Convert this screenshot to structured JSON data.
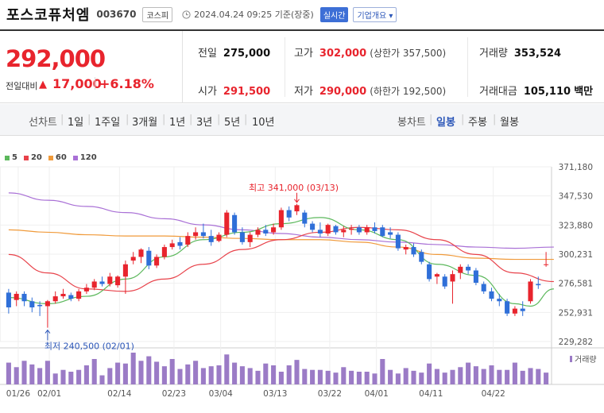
{
  "header": {
    "stock_name": "포스코퓨처엠",
    "stock_code": "003670",
    "market": "코스피",
    "timestamp": "2024.04.24 09:25 기준(장중)",
    "realtime": "실시간",
    "company_info": "기업개요 ▾",
    "clock_icon": "clock-icon"
  },
  "price": {
    "current": "292,000",
    "change_label": "전일대비",
    "change_arrow": "▲",
    "change_amount": "17,000",
    "change_pct": "+6.18%"
  },
  "stats": {
    "prev_label": "전일",
    "prev_value": "275,000",
    "open_label": "시가",
    "open_value": "291,500",
    "high_label": "고가",
    "high_value": "302,000",
    "upper_limit": "(상한가 357,500)",
    "low_label": "저가",
    "low_value": "290,000",
    "lower_limit": "(하한가 192,500)",
    "volume_label": "거래량",
    "volume_value": "353,524",
    "amount_label": "거래대금",
    "amount_value": "105,110",
    "amount_unit": "백만"
  },
  "periods": {
    "line_label": "선차트",
    "items": [
      "1일",
      "1주일",
      "3개월",
      "1년",
      "3년",
      "5년",
      "10년"
    ],
    "candle_label": "봉차트",
    "candle_items": [
      "일봉",
      "주봉",
      "월봉"
    ],
    "active_candle": "일봉"
  },
  "legend": [
    {
      "label": "5",
      "color": "#5cb85c"
    },
    {
      "label": "20",
      "color": "#e8424a"
    },
    {
      "label": "60",
      "color": "#f09a3a"
    },
    {
      "label": "120",
      "color": "#a970d6"
    }
  ],
  "volume_label": "거래량",
  "chart_data": {
    "type": "candlestick",
    "y_ticks": [
      "371,180",
      "347,530",
      "323,880",
      "300,231",
      "276,581",
      "252,931",
      "229,282"
    ],
    "ylim": [
      229282,
      371180
    ],
    "x_ticks": [
      "01/26",
      "02/01",
      "02/14",
      "02/23",
      "03/04",
      "03/13",
      "03/22",
      "04/01",
      "04/11",
      "04/22"
    ],
    "annotations": [
      {
        "text": "최고 341,000 (03/13)",
        "color": "#e8242d"
      },
      {
        "text": "최저 240,500 (02/01)",
        "color": "#2b56b8"
      }
    ],
    "ohlc": [
      [
        269000,
        272000,
        252000,
        257000
      ],
      [
        263000,
        270000,
        258000,
        268000
      ],
      [
        268000,
        270000,
        258000,
        262000
      ],
      [
        262000,
        265000,
        253000,
        257000
      ],
      [
        259000,
        262000,
        250000,
        258000
      ],
      [
        258000,
        263000,
        240500,
        262000
      ],
      [
        262000,
        270000,
        260000,
        266000
      ],
      [
        266000,
        272000,
        264000,
        268000
      ],
      [
        267000,
        269000,
        262000,
        264000
      ],
      [
        264000,
        272000,
        262000,
        270000
      ],
      [
        270000,
        276000,
        268000,
        273000
      ],
      [
        273000,
        280000,
        271000,
        278000
      ],
      [
        278000,
        282000,
        274000,
        276000
      ],
      [
        276000,
        285000,
        274000,
        282000
      ],
      [
        275000,
        283000,
        273000,
        282000
      ],
      [
        282000,
        295000,
        268000,
        292000
      ],
      [
        295000,
        302000,
        292000,
        298000
      ],
      [
        298000,
        305000,
        293000,
        304000
      ],
      [
        303000,
        306000,
        288000,
        291000
      ],
      [
        291000,
        300000,
        289000,
        298000
      ],
      [
        298000,
        308000,
        296000,
        306000
      ],
      [
        306000,
        312000,
        304000,
        309000
      ],
      [
        310000,
        314000,
        304000,
        307000
      ],
      [
        308000,
        318000,
        306000,
        315000
      ],
      [
        315000,
        322000,
        312000,
        318000
      ],
      [
        318000,
        325000,
        313000,
        315000
      ],
      [
        315000,
        320000,
        307000,
        310000
      ],
      [
        311000,
        318000,
        310000,
        316000
      ],
      [
        316000,
        336000,
        314000,
        334000
      ],
      [
        332000,
        334000,
        316000,
        318000
      ],
      [
        318000,
        322000,
        308000,
        310000
      ],
      [
        310000,
        318000,
        306000,
        316000
      ],
      [
        316000,
        322000,
        314000,
        320000
      ],
      [
        320000,
        324000,
        315000,
        317000
      ],
      [
        318000,
        325000,
        316000,
        322000
      ],
      [
        322000,
        338000,
        320000,
        336000
      ],
      [
        336000,
        339000,
        327000,
        330000
      ],
      [
        335000,
        341000,
        332000,
        340000
      ],
      [
        334000,
        336000,
        322000,
        325000
      ],
      [
        325000,
        327000,
        318000,
        320000
      ],
      [
        320000,
        326000,
        314000,
        317000
      ],
      [
        317000,
        325000,
        315000,
        324000
      ],
      [
        323000,
        324000,
        316000,
        318000
      ],
      [
        318000,
        323000,
        314000,
        320000
      ],
      [
        320000,
        324000,
        316000,
        321000
      ],
      [
        322000,
        324000,
        316000,
        318000
      ],
      [
        318000,
        324000,
        316000,
        322000
      ],
      [
        322000,
        326000,
        317000,
        319000
      ],
      [
        322000,
        324000,
        314000,
        315000
      ],
      [
        318000,
        322000,
        313000,
        316000
      ],
      [
        316000,
        318000,
        303000,
        305000
      ],
      [
        304000,
        308000,
        300000,
        306000
      ],
      [
        306000,
        309000,
        298000,
        300000
      ],
      [
        302000,
        304000,
        292000,
        294000
      ],
      [
        292000,
        294000,
        278000,
        280000
      ],
      [
        282000,
        285000,
        276000,
        284000
      ],
      [
        282000,
        284000,
        272000,
        274000
      ],
      [
        278000,
        287000,
        260000,
        284000
      ],
      [
        285000,
        292000,
        280000,
        290000
      ],
      [
        290000,
        292000,
        284000,
        287000
      ],
      [
        287000,
        289000,
        275000,
        277000
      ],
      [
        276000,
        278000,
        268000,
        270000
      ],
      [
        270000,
        273000,
        262000,
        264000
      ],
      [
        264000,
        268000,
        258000,
        262000
      ],
      [
        262000,
        264000,
        250000,
        252000
      ],
      [
        252000,
        258000,
        250000,
        256000
      ],
      [
        256000,
        262000,
        250000,
        254000
      ],
      [
        262000,
        280000,
        260000,
        278000
      ],
      [
        276000,
        282000,
        272000,
        275000
      ],
      [
        291500,
        302000,
        290000,
        292000
      ]
    ],
    "ma": {
      "5": [
        [
          0,
          265000
        ],
        [
          5,
          260000
        ],
        [
          10,
          266000
        ],
        [
          15,
          280000
        ],
        [
          20,
          298000
        ],
        [
          25,
          312000
        ],
        [
          30,
          318000
        ],
        [
          35,
          325000
        ],
        [
          40,
          330000
        ],
        [
          45,
          320000
        ],
        [
          50,
          312000
        ],
        [
          55,
          292000
        ],
        [
          60,
          283000
        ],
        [
          65,
          260000
        ],
        [
          67,
          258000
        ],
        [
          70,
          272000
        ]
      ],
      "20": [
        [
          0,
          300000
        ],
        [
          5,
          285000
        ],
        [
          10,
          272000
        ],
        [
          15,
          270000
        ],
        [
          20,
          280000
        ],
        [
          25,
          292000
        ],
        [
          30,
          304000
        ],
        [
          35,
          312000
        ],
        [
          40,
          318000
        ],
        [
          45,
          322000
        ],
        [
          50,
          320000
        ],
        [
          55,
          312000
        ],
        [
          60,
          300000
        ],
        [
          65,
          285000
        ],
        [
          70,
          278000
        ]
      ],
      "60": [
        [
          0,
          320000
        ],
        [
          5,
          318000
        ],
        [
          10,
          316000
        ],
        [
          15,
          315000
        ],
        [
          20,
          315000
        ],
        [
          25,
          314000
        ],
        [
          30,
          313000
        ],
        [
          35,
          312000
        ],
        [
          40,
          312000
        ],
        [
          45,
          310000
        ],
        [
          50,
          306000
        ],
        [
          55,
          300000
        ],
        [
          60,
          297000
        ],
        [
          65,
          296000
        ],
        [
          70,
          296000
        ]
      ],
      "120": [
        [
          0,
          350000
        ],
        [
          5,
          344000
        ],
        [
          10,
          339000
        ],
        [
          15,
          334000
        ],
        [
          20,
          329000
        ],
        [
          25,
          324000
        ],
        [
          30,
          320000
        ],
        [
          35,
          317000
        ],
        [
          40,
          314000
        ],
        [
          45,
          312000
        ],
        [
          50,
          310000
        ],
        [
          55,
          308000
        ],
        [
          60,
          306000
        ],
        [
          65,
          305000
        ],
        [
          70,
          306000
        ]
      ]
    },
    "volume": [
      24,
      19,
      26,
      22,
      18,
      26,
      12,
      16,
      14,
      16,
      21,
      28,
      10,
      18,
      24,
      23,
      35,
      26,
      31,
      25,
      20,
      28,
      17,
      22,
      26,
      18,
      20,
      21,
      33,
      24,
      20,
      18,
      15,
      23,
      21,
      14,
      21,
      27,
      17,
      16,
      16,
      15,
      13,
      19,
      15,
      14,
      14,
      12,
      28,
      16,
      12,
      18,
      15,
      13,
      23,
      17,
      13,
      16,
      19,
      24,
      20,
      17,
      21,
      16,
      16,
      24,
      15,
      18,
      17,
      13
    ]
  }
}
